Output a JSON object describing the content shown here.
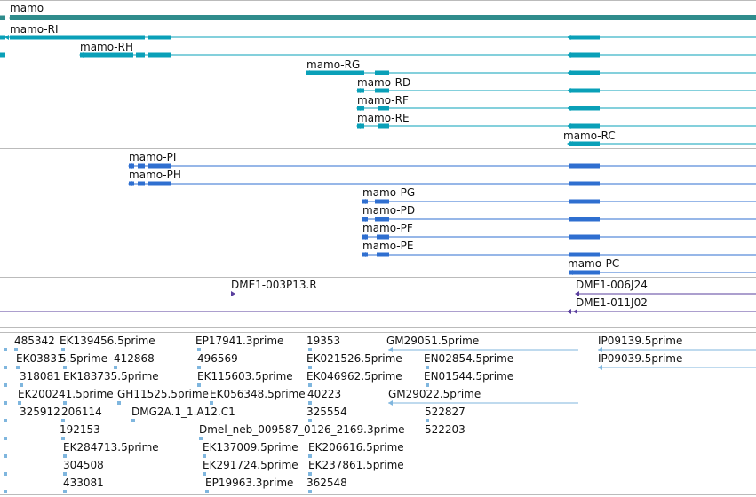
{
  "colors": {
    "gene": "#2f8c8c",
    "transcript_r": "#0aa0b8",
    "protein_p": "#2f6fd0",
    "cdna": "#5a3f9e",
    "est": "#7fb6de",
    "border": "#bbbbbb"
  },
  "gene": {
    "label": "mamo"
  },
  "transcripts": [
    {
      "label": "mamo-RI"
    },
    {
      "label": "mamo-RH"
    },
    {
      "label": "mamo-RG"
    },
    {
      "label": "mamo-RD"
    },
    {
      "label": "mamo-RF"
    },
    {
      "label": "mamo-RE"
    },
    {
      "label": "mamo-RC"
    }
  ],
  "proteins": [
    {
      "label": "mamo-PI"
    },
    {
      "label": "mamo-PH"
    },
    {
      "label": "mamo-PG"
    },
    {
      "label": "mamo-PD"
    },
    {
      "label": "mamo-PF"
    },
    {
      "label": "mamo-PE"
    },
    {
      "label": "mamo-PC"
    }
  ],
  "clones": [
    {
      "label": "DME1-003P13.R"
    },
    {
      "label": "DME1-006J24"
    },
    {
      "label": "DME1-011J02"
    }
  ],
  "ests": [
    "485342",
    "EK139456.5prime",
    "EP17941.3prime",
    "19353",
    "GM29051.5prime",
    "IP09139.5prime",
    "EK03831",
    "5.5prime",
    "EK183735.5prime",
    "412868",
    "496569",
    "EK021526.5prime",
    "EN02854.5prime",
    "IP09039.5prime",
    "318081",
    "EK115603.5prime",
    "EK046962.5prime",
    "EN01544.5prime",
    "EK200241.5prime",
    "GH11525.5prime",
    "EK056348.5prime",
    "40223",
    "GM29022.5prime",
    "325912",
    "206114",
    "DMG2A.1_1.A12.C1",
    "325554",
    "522827",
    "192153",
    "Dmel_neb_009587_0126_2169.3prime",
    "522203",
    "EK284713.5prime",
    "EK137009.5prime",
    "EK206616.5prime",
    "304508",
    "EK291724.5prime",
    "EK237861.5prime",
    "433081",
    "EP19963.3prime",
    "362548"
  ]
}
